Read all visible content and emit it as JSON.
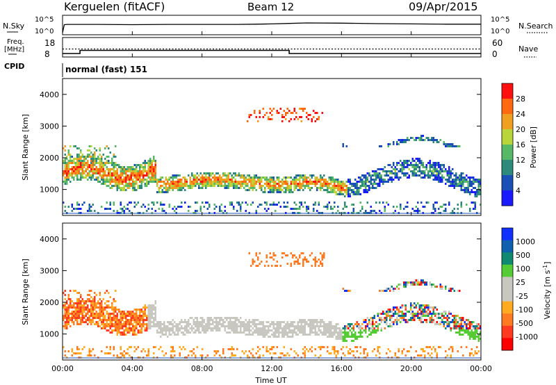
{
  "header": {
    "station": "Kerguelen (fitACF)",
    "beam": "Beam 12",
    "date": "09/Apr/2015"
  },
  "status_panels": {
    "nsky_label": "N.Sky",
    "nsearch_label": "N.Search",
    "log_ticks": [
      "10^5",
      "10^0"
    ],
    "freq_label_1": "Freq.",
    "freq_label_2": "[MHz]",
    "freq_ticks": [
      "18",
      "8"
    ],
    "nave_label": "Nave",
    "nave_ticks": [
      "60",
      "0"
    ],
    "cpid_label": "CPID",
    "cpid_value": "normal (fast) 151"
  },
  "colors": {
    "power_scale": [
      "#1a1aff",
      "#1a4fb8",
      "#2e8a7a",
      "#57b866",
      "#b8d63a",
      "#f0a020",
      "#ff6a10",
      "#ff1010"
    ],
    "velocity_scale": [
      "#1030ff",
      "#1060b0",
      "#0f8a70",
      "#55cc33",
      "#c8c8c0",
      "#c8c8c0",
      "#ffaa20",
      "#ff7a20",
      "#ff3a20",
      "#ff0000"
    ]
  },
  "chart_data": [
    {
      "type": "line",
      "title": "Kerguelen (fitACF)",
      "xlabel": "Time UT",
      "x_ticks": [
        "00:00",
        "04:00",
        "08:00",
        "12:00",
        "16:00",
        "20:00",
        "00:00"
      ],
      "x_range_hours": [
        0,
        24
      ],
      "series": [
        {
          "name": "N.Sky",
          "x": [
            0,
            0.1,
            0.3,
            2,
            4,
            6,
            8,
            10,
            11,
            12,
            13,
            14,
            16,
            18,
            20,
            22,
            24
          ],
          "y_log10": [
            0,
            3.2,
            3.3,
            3.3,
            3.2,
            3.3,
            3.3,
            3.3,
            3.4,
            3.5,
            3.7,
            3.9,
            3.8,
            3.6,
            3.5,
            3.4,
            3.4
          ]
        },
        {
          "name": "Freq. [MHz]",
          "x": [
            0,
            1,
            1,
            13,
            13,
            24
          ],
          "y": [
            10,
            10,
            13,
            13,
            10,
            10
          ]
        },
        {
          "name": "Nave",
          "x": [
            0,
            24
          ],
          "y": [
            38,
            38
          ]
        }
      ]
    },
    {
      "type": "heatmap",
      "ylabel": "Slant Range [km]",
      "y_ticks": [
        1000,
        2000,
        3000,
        4000
      ],
      "ylim": [
        180,
        4500
      ],
      "colorbar": {
        "label": "Power [dB]",
        "ticks": [
          4,
          8,
          12,
          16,
          20,
          24,
          28
        ],
        "range": [
          0,
          32
        ]
      }
    },
    {
      "type": "heatmap",
      "ylabel": "Slant Range [km]",
      "y_ticks": [
        1000,
        2000,
        3000,
        4000
      ],
      "ylim": [
        180,
        4500
      ],
      "colorbar": {
        "label": "Velocity [m s^-1]",
        "ticks": [
          1000,
          500,
          100,
          25,
          -25,
          -100,
          -500,
          -1000
        ]
      }
    }
  ]
}
